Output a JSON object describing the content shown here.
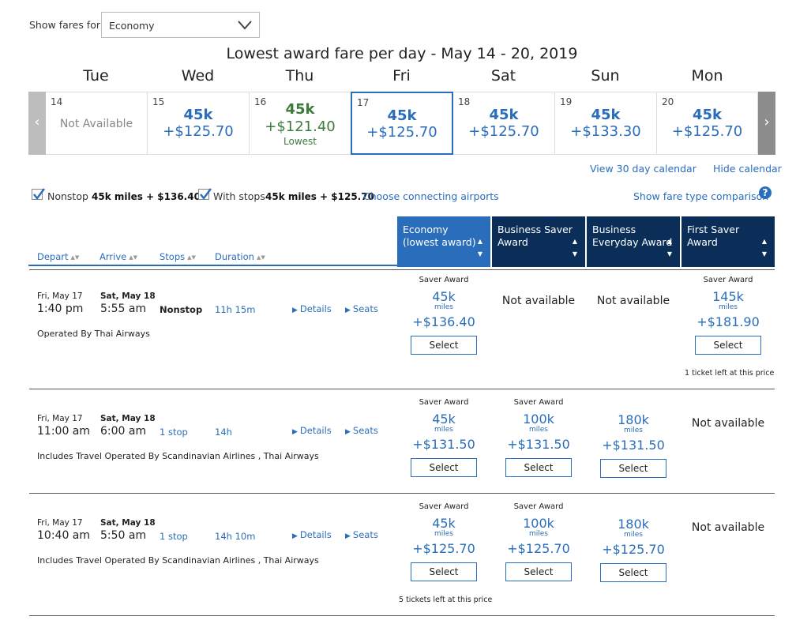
{
  "fare_filter": {
    "label": "Show fares for",
    "value": "Economy"
  },
  "calendar": {
    "title": "Lowest award fare per day - May 14 - 20, 2019",
    "days": [
      {
        "name": "Tue",
        "num": "14",
        "status": "Not Available"
      },
      {
        "name": "Wed",
        "num": "15",
        "miles": "45k",
        "price": "+$125.70"
      },
      {
        "name": "Thu",
        "num": "16",
        "miles": "45k",
        "price": "+$121.40",
        "note": "Lowest"
      },
      {
        "name": "Fri",
        "num": "17",
        "miles": "45k",
        "price": "+$125.70"
      },
      {
        "name": "Sat",
        "num": "18",
        "miles": "45k",
        "price": "+$125.70"
      },
      {
        "name": "Sun",
        "num": "19",
        "miles": "45k",
        "price": "+$133.30"
      },
      {
        "name": "Mon",
        "num": "20",
        "miles": "45k",
        "price": "+$125.70"
      }
    ],
    "view30": "View 30 day calendar",
    "hide": "Hide calendar"
  },
  "filters": {
    "nonstop": {
      "label": "Nonstop",
      "price": "45k miles + $136.40",
      "checked": true
    },
    "withstops": {
      "label": "With stops",
      "price": "45k miles + $125.70",
      "checked": true
    },
    "connect_link": "Choose connecting airports",
    "compare_link": "Show fare type comparison",
    "help_icon": "?"
  },
  "columns": {
    "sort": [
      "Depart",
      "Arrive",
      "Stops",
      "Duration"
    ],
    "fares": [
      {
        "line1": "Economy",
        "line2": "(lowest award)",
        "color": "#2a6ebb"
      },
      {
        "line1": "Business Saver",
        "line2": "Award",
        "color": "#0b2e59"
      },
      {
        "line1": "Business",
        "line2": "Everyday Award",
        "color": "#0b2e59"
      },
      {
        "line1": "First Saver Award",
        "line2": "",
        "color": "#0b2e59"
      }
    ]
  },
  "flights": [
    {
      "dep_date": "Fri, May 17",
      "dep_time": "1:40 pm",
      "arr_date": "Sat, May 18",
      "arr_time": "5:55 am",
      "stops": "Nonstop",
      "duration": "11h 15m",
      "details": "Details",
      "seats": "Seats",
      "operated": "Operated By Thai Airways",
      "fares": [
        {
          "label": "Saver Award",
          "miles": "45k",
          "unit": "miles",
          "price": "+$136.40",
          "button": "Select"
        },
        {
          "na": "Not available"
        },
        {
          "na": "Not available"
        },
        {
          "label": "Saver Award",
          "miles": "145k",
          "unit": "miles",
          "price": "+$181.90",
          "button": "Select",
          "note": "1 ticket left at this price"
        }
      ]
    },
    {
      "dep_date": "Fri, May 17",
      "dep_time": "11:00 am",
      "arr_date": "Sat, May 18",
      "arr_time": "6:00 am",
      "stops": "1 stop",
      "duration": "14h",
      "details": "Details",
      "seats": "Seats",
      "operated": "Includes Travel Operated By Scandinavian Airlines , Thai Airways",
      "fares": [
        {
          "label": "Saver Award",
          "miles": "45k",
          "unit": "miles",
          "price": "+$131.50",
          "button": "Select"
        },
        {
          "label": "Saver Award",
          "miles": "100k",
          "unit": "miles",
          "price": "+$131.50",
          "button": "Select"
        },
        {
          "label": "",
          "miles": "180k",
          "unit": "miles",
          "price": "+$131.50",
          "button": "Select"
        },
        {
          "na": "Not available"
        }
      ]
    },
    {
      "dep_date": "Fri, May 17",
      "dep_time": "10:40 am",
      "arr_date": "Sat, May 18",
      "arr_time": "5:50 am",
      "stops": "1 stop",
      "duration": "14h 10m",
      "details": "Details",
      "seats": "Seats",
      "operated": "Includes Travel Operated By Scandinavian Airlines , Thai Airways",
      "fares": [
        {
          "label": "Saver Award",
          "miles": "45k",
          "unit": "miles",
          "price": "+$125.70",
          "button": "Select",
          "note": "5 tickets left at this price"
        },
        {
          "label": "Saver Award",
          "miles": "100k",
          "unit": "miles",
          "price": "+$125.70",
          "button": "Select"
        },
        {
          "label": "",
          "miles": "180k",
          "unit": "miles",
          "price": "+$125.70",
          "button": "Select"
        },
        {
          "na": "Not available"
        }
      ]
    }
  ]
}
